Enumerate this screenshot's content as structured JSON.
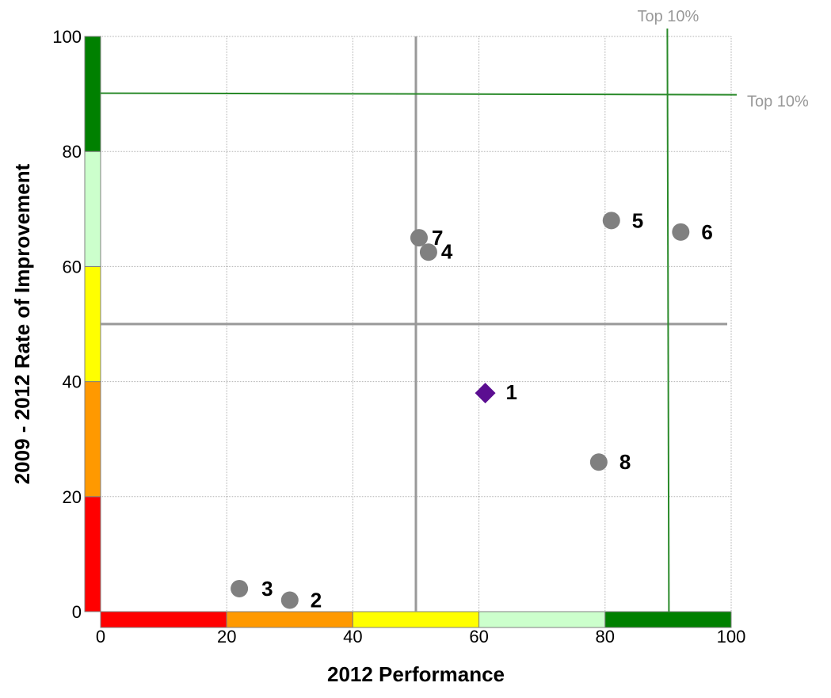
{
  "chart_data": {
    "type": "scatter",
    "title": "",
    "xlabel": "2012 Performance",
    "ylabel": "2009 - 2012 Rate of Improvement",
    "xlim": [
      0,
      100
    ],
    "ylim": [
      0,
      100
    ],
    "x_ticks": [
      "0",
      "20",
      "40",
      "60",
      "80",
      "100"
    ],
    "y_ticks": [
      "0",
      "20",
      "40",
      "60",
      "80",
      "100"
    ],
    "grid": true,
    "points": [
      {
        "label": "1",
        "x": 61,
        "y": 38,
        "marker": "diamond",
        "color": "#5b0e91"
      },
      {
        "label": "2",
        "x": 30,
        "y": 2,
        "marker": "circle",
        "color": "#808080"
      },
      {
        "label": "3",
        "x": 22,
        "y": 4,
        "marker": "circle",
        "color": "#808080"
      },
      {
        "label": "4",
        "x": 52,
        "y": 62.5,
        "marker": "circle",
        "color": "#808080"
      },
      {
        "label": "5",
        "x": 81,
        "y": 68,
        "marker": "circle",
        "color": "#808080"
      },
      {
        "label": "6",
        "x": 92,
        "y": 66,
        "marker": "circle",
        "color": "#808080"
      },
      {
        "label": "7",
        "x": 50.5,
        "y": 65,
        "marker": "circle",
        "color": "#808080"
      },
      {
        "label": "8",
        "x": 79,
        "y": 26,
        "marker": "circle",
        "color": "#808080"
      }
    ],
    "reference_lines": [
      {
        "orientation": "vertical",
        "value": 50,
        "color": "#999999"
      },
      {
        "orientation": "horizontal",
        "value": 50,
        "color": "#999999"
      },
      {
        "orientation": "vertical",
        "value": 90,
        "color": "#2a8a2a",
        "label": "Top 10%"
      },
      {
        "orientation": "horizontal",
        "value": 90,
        "color": "#2a8a2a",
        "label": "Top 10%"
      }
    ],
    "color_bands": [
      {
        "from": 0,
        "to": 20,
        "color": "#ff0000"
      },
      {
        "from": 20,
        "to": 40,
        "color": "#ff9900"
      },
      {
        "from": 40,
        "to": 60,
        "color": "#ffff00"
      },
      {
        "from": 60,
        "to": 80,
        "color": "#ccffcc"
      },
      {
        "from": 80,
        "to": 100,
        "color": "#008000"
      }
    ],
    "grid_color": "#b3b3b3"
  }
}
